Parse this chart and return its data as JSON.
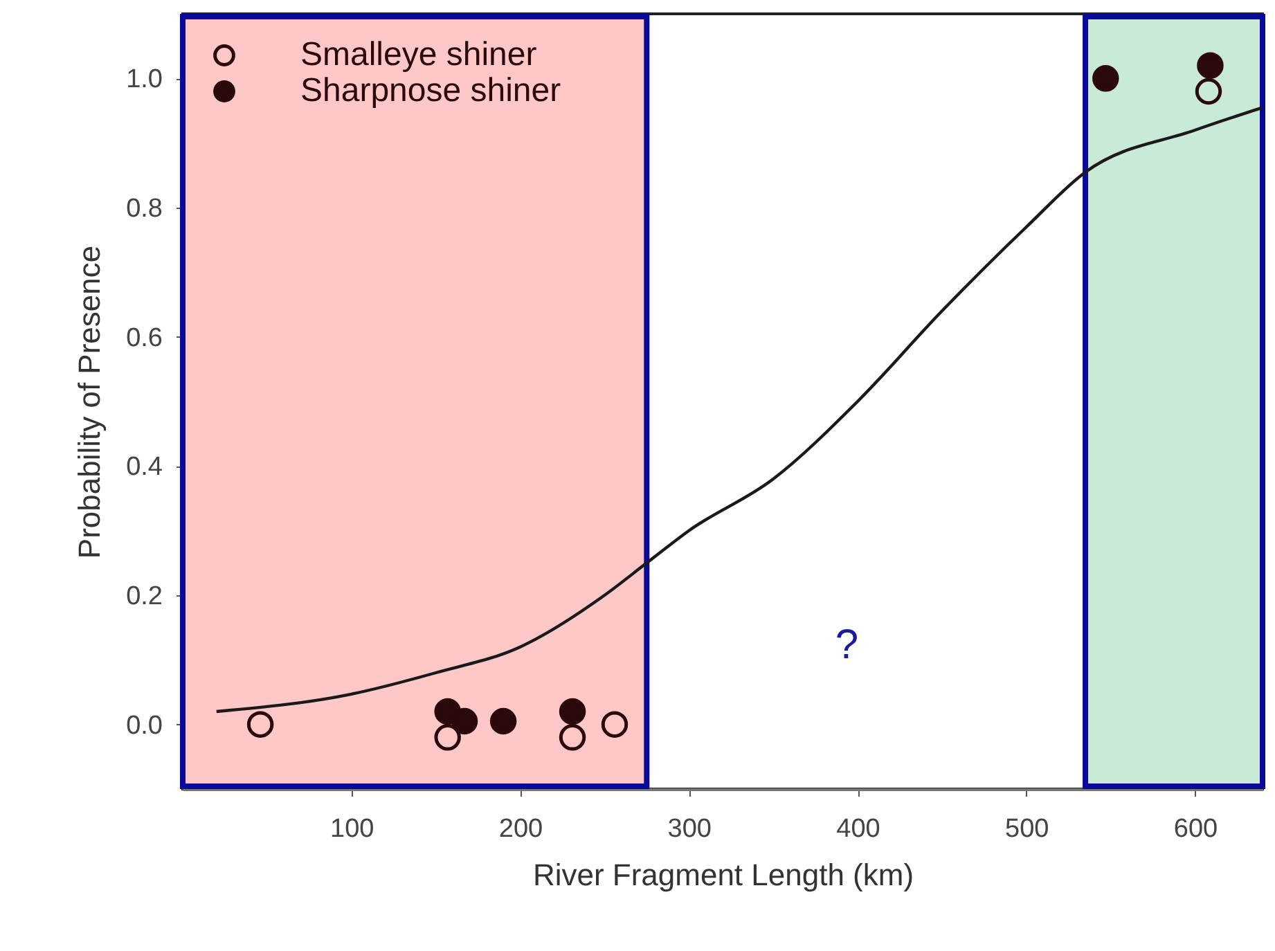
{
  "chart_data": {
    "type": "scatter",
    "xlabel": "River Fragment Length (km)",
    "ylabel": "Probability of Presence",
    "xlim": [
      0,
      640
    ],
    "ylim": [
      -0.1,
      1.1
    ],
    "xticks": [
      100,
      200,
      300,
      400,
      500,
      600
    ],
    "yticks": [
      {
        "value": 0,
        "label": "0.0"
      },
      {
        "value": 0.2,
        "label": "0.2"
      },
      {
        "value": 0.4,
        "label": "0.4"
      },
      {
        "value": 0.6,
        "label": "0.6"
      },
      {
        "value": 0.8,
        "label": "0.8"
      },
      {
        "value": 1,
        "label": "1.0"
      }
    ],
    "grid": false,
    "legend": "top left",
    "marker": "circle",
    "bands": [
      {
        "axis": "x",
        "from": 0,
        "to": 275,
        "color": "#ffc8c8"
      },
      {
        "axis": "x",
        "from": 535,
        "to": 640,
        "color": "#c8ead6"
      }
    ],
    "annotations": [
      "?"
    ],
    "series": [
      {
        "name": "Smalleye shiner",
        "color": "#2a0a0a",
        "x": [
          46,
          157,
          231,
          256,
          608
        ],
        "values": [
          0.0,
          -0.02,
          -0.02,
          0.0,
          0.98
        ]
      },
      {
        "name": "Sharpnose shiner",
        "color": "#2a0a0a",
        "x": [
          157,
          167,
          190,
          231,
          547,
          609
        ],
        "values": [
          0.02,
          0.005,
          0.005,
          0.02,
          1.0,
          1.02
        ]
      },
      {
        "type": "line",
        "color": "#1a1a1a",
        "line_style": "solid",
        "marker": "none",
        "x": [
          20,
          100,
          150,
          200,
          250,
          275,
          300,
          350,
          400,
          450,
          500,
          535,
          600,
          640
        ],
        "values": [
          0.02,
          0.047,
          0.08,
          0.12,
          0.2,
          0.25,
          0.3,
          0.38,
          0.5,
          0.64,
          0.77,
          0.855,
          0.92,
          0.955
        ]
      }
    ]
  }
}
